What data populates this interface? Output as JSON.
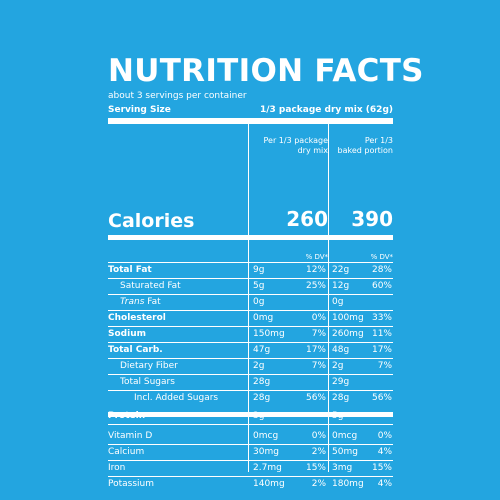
{
  "label": {
    "title": "NUTRITION FACTS",
    "servings": "about 3 servings per container",
    "serving_size_label": "Serving Size",
    "serving_size_value": "1/3 package dry mix (62g)",
    "column1_header_line1": "Per 1/3 package",
    "column1_header_line2": "dry mix",
    "column2_header_line1": "Per 1/3",
    "column2_header_line2": "baked portion",
    "calories_label": "Calories",
    "calories_col1": "260",
    "calories_col2": "390",
    "dv_col1": "% DV*",
    "dv_col2": "% DV*"
  },
  "nutrients": [
    {
      "name": "Total Fat",
      "col1_amount": "9g",
      "col1_dv": "12%",
      "col2_amount": "22g",
      "col2_dv": "28%"
    },
    {
      "name": "Saturated Fat",
      "col1_amount": "5g",
      "col1_dv": "25%",
      "col2_amount": "12g",
      "col2_dv": "60%"
    },
    {
      "name_italic": "Trans",
      "name_suffix": " Fat",
      "col1_amount": "0g",
      "col1_dv": "",
      "col2_amount": "0g",
      "col2_dv": ""
    },
    {
      "name": "Cholesterol",
      "col1_amount": "0mg",
      "col1_dv": "0%",
      "col2_amount": "100mg",
      "col2_dv": "33%"
    },
    {
      "name": "Sodium",
      "col1_amount": "150mg",
      "col1_dv": "7%",
      "col2_amount": "260mg",
      "col2_dv": "11%"
    },
    {
      "name": "Total Carb.",
      "col1_amount": "47g",
      "col1_dv": "17%",
      "col2_amount": "48g",
      "col2_dv": "17%"
    },
    {
      "name": "Dietary Fiber",
      "col1_amount": "2g",
      "col1_dv": "7%",
      "col2_amount": "2g",
      "col2_dv": "7%"
    },
    {
      "name": "Total Sugars",
      "col1_amount": "28g",
      "col1_dv": "",
      "col2_amount": "29g",
      "col2_dv": ""
    },
    {
      "name": "Incl. Added Sugars",
      "col1_amount": "28g",
      "col1_dv": "56%",
      "col2_amount": "28g",
      "col2_dv": "56%"
    },
    {
      "name": "Protein",
      "col1_amount": "3g",
      "col1_dv": "",
      "col2_amount": "5g",
      "col2_dv": ""
    },
    {
      "name": "Vitamin D",
      "col1_amount": "0mcg",
      "col1_dv": "0%",
      "col2_amount": "0mcg",
      "col2_dv": "0%"
    },
    {
      "name": "Calcium",
      "col1_amount": "30mg",
      "col1_dv": "2%",
      "col2_amount": "50mg",
      "col2_dv": "4%"
    },
    {
      "name": "Iron",
      "col1_amount": "2.7mg",
      "col1_dv": "15%",
      "col2_amount": "3mg",
      "col2_dv": "15%"
    },
    {
      "name": "Potassium",
      "col1_amount": "140mg",
      "col1_dv": "2%",
      "col2_amount": "180mg",
      "col2_dv": "4%"
    }
  ]
}
